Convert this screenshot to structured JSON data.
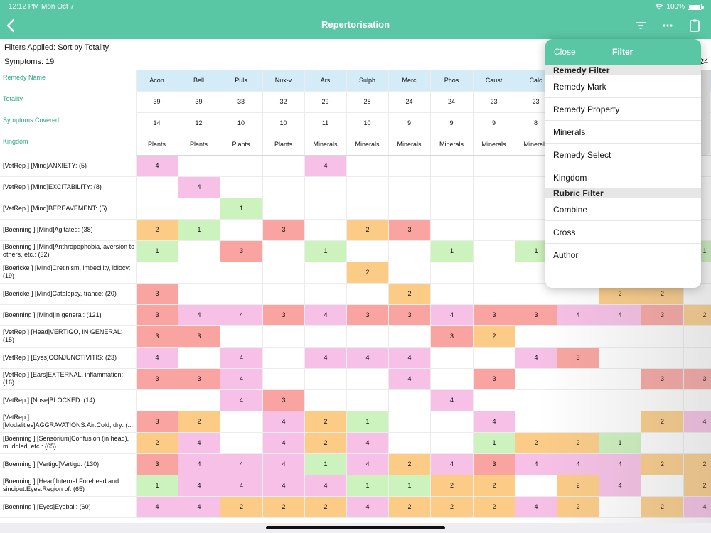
{
  "status": {
    "time": "12:12 PM",
    "date": "Mon Oct 7",
    "battery": "100%"
  },
  "nav": {
    "title": "Repertorisation",
    "back_icon": "chevron-left-icon",
    "icons": [
      "filter-icon",
      "more-icon",
      "clipboard-icon"
    ]
  },
  "info": {
    "filters_applied": "Filters Applied:  Sort by Totality",
    "symptoms": "Symptoms:  19",
    "right_cut": "24"
  },
  "labels": {
    "remedy_name": "Remedy Name",
    "totality": "Totality",
    "symptoms_covered": "Symptoms Covered",
    "kingdom": "Kingdom"
  },
  "remedies": [
    {
      "name": "Acon",
      "totality": "39",
      "covered": "14",
      "kingdom": "Plants"
    },
    {
      "name": "Bell",
      "totality": "39",
      "covered": "12",
      "kingdom": "Plants"
    },
    {
      "name": "Puls",
      "totality": "33",
      "covered": "10",
      "kingdom": "Plants"
    },
    {
      "name": "Nux-v",
      "totality": "32",
      "covered": "10",
      "kingdom": "Plants"
    },
    {
      "name": "Ars",
      "totality": "29",
      "covered": "11",
      "kingdom": "Minerals"
    },
    {
      "name": "Sulph",
      "totality": "28",
      "covered": "10",
      "kingdom": "Minerals"
    },
    {
      "name": "Merc",
      "totality": "24",
      "covered": "9",
      "kingdom": "Minerals"
    },
    {
      "name": "Phos",
      "totality": "24",
      "covered": "9",
      "kingdom": "Minerals"
    },
    {
      "name": "Caust",
      "totality": "23",
      "covered": "9",
      "kingdom": "Minerals"
    },
    {
      "name": "Calc",
      "totality": "23",
      "covered": "8",
      "kingdom": "Minerals"
    },
    {
      "name": "",
      "totality": "",
      "covered": "",
      "kingdom": ""
    },
    {
      "name": "",
      "totality": "",
      "covered": "",
      "kingdom": ""
    },
    {
      "name": "",
      "totality": "",
      "covered": "",
      "kingdom": ""
    },
    {
      "name": "",
      "totality": "",
      "covered": "",
      "kingdom": ""
    }
  ],
  "grade_colors": {
    "1": "#ccf2bd",
    "2": "#fccc86",
    "3": "#f9a4a0",
    "4": "#f7c0e6"
  },
  "rubrics": [
    {
      "text": "[VetRep ] [Mind]ANXIETY: (5)",
      "cells": [
        4,
        0,
        0,
        0,
        4,
        0,
        0,
        0,
        0,
        0,
        0,
        0,
        0,
        0
      ]
    },
    {
      "text": "[VetRep ] [Mind]EXCITABILITY: (8)",
      "cells": [
        0,
        4,
        0,
        0,
        0,
        0,
        0,
        0,
        0,
        0,
        0,
        0,
        0,
        0
      ]
    },
    {
      "text": "[VetRep ] [Mind]BEREAVEMENT: (5)",
      "cells": [
        0,
        0,
        1,
        0,
        0,
        0,
        0,
        0,
        0,
        0,
        0,
        0,
        0,
        0
      ]
    },
    {
      "text": "[Boenning ] [Mind]Agitated: (38)",
      "cells": [
        2,
        1,
        0,
        3,
        0,
        2,
        3,
        0,
        0,
        0,
        0,
        0,
        0,
        0
      ]
    },
    {
      "text": "[Boenning ] [Mind]Anthropophobia, aversion to others, etc.: (32)",
      "cells": [
        1,
        0,
        3,
        0,
        1,
        0,
        0,
        1,
        0,
        1,
        0,
        0,
        0,
        1
      ]
    },
    {
      "text": "[Boericke ] [Mind]Cretinism, imbecility, idiocy: (19)",
      "cells": [
        0,
        0,
        0,
        0,
        0,
        2,
        0,
        0,
        0,
        0,
        0,
        0,
        0,
        0
      ]
    },
    {
      "text": "[Boericke ] [Mind]Catalepsy, trance: (20)",
      "cells": [
        3,
        0,
        0,
        0,
        0,
        0,
        2,
        0,
        0,
        0,
        0,
        2,
        2,
        0
      ]
    },
    {
      "text": "[Boenning ] [Mind]In general: (121)",
      "cells": [
        3,
        4,
        4,
        3,
        4,
        3,
        3,
        4,
        3,
        3,
        4,
        4,
        3,
        2
      ]
    },
    {
      "text": "[VetRep ] [Head]VERTIGO, IN GENERAL: (15)",
      "cells": [
        3,
        3,
        0,
        0,
        0,
        0,
        0,
        3,
        2,
        0,
        0,
        0,
        0,
        0
      ]
    },
    {
      "text": "[VetRep ] [Eyes]CONJUNCTIVITIS: (23)",
      "cells": [
        4,
        0,
        4,
        0,
        4,
        4,
        4,
        0,
        0,
        4,
        3,
        0,
        0,
        0
      ]
    },
    {
      "text": "[VetRep ] [Ears]EXTERNAL, inflammation: (16)",
      "cells": [
        3,
        3,
        4,
        0,
        0,
        0,
        4,
        0,
        3,
        0,
        0,
        0,
        3,
        3
      ]
    },
    {
      "text": "[VetRep ] [Nose]BLOCKED: (14)",
      "cells": [
        0,
        0,
        4,
        3,
        0,
        0,
        0,
        4,
        0,
        0,
        0,
        0,
        0,
        0
      ]
    },
    {
      "text": "[VetRep ] [Modalities]AGGRAVATIONS:Air:Cold, dry: (...",
      "cells": [
        3,
        2,
        0,
        4,
        2,
        1,
        0,
        0,
        4,
        0,
        0,
        0,
        2,
        4
      ]
    },
    {
      "text": "[Boenning ] [Sensorium]Confusion (in head), muddled, etc.: (65)",
      "cells": [
        2,
        4,
        0,
        4,
        2,
        4,
        0,
        0,
        1,
        2,
        2,
        1,
        0,
        0
      ]
    },
    {
      "text": "[Boenning ] [Vertigo]Vertigo: (130)",
      "cells": [
        3,
        4,
        4,
        4,
        1,
        4,
        2,
        4,
        3,
        4,
        4,
        4,
        2,
        2
      ]
    },
    {
      "text": "[Boenning ] [Head]Internal:Forehead and sinciput:Eyes:Region of: (65)",
      "cells": [
        1,
        4,
        4,
        4,
        4,
        1,
        1,
        2,
        2,
        0,
        2,
        4,
        0,
        2
      ]
    },
    {
      "text": "[Boenning ] [Eyes]Eyeball: (60)",
      "cells": [
        4,
        4,
        2,
        2,
        2,
        4,
        2,
        2,
        2,
        4,
        2,
        0,
        2,
        4
      ]
    }
  ],
  "popover": {
    "close": "Close",
    "title": "Filter",
    "remedy_filter": "Remedy Filter",
    "remedy_items": [
      "Remedy Mark",
      "Remedy Property",
      "Minerals",
      "Remedy Select",
      "Kingdom"
    ],
    "rubric_filter": "Rubric Filter",
    "rubric_items": [
      "Combine",
      "Cross",
      "Author"
    ]
  }
}
